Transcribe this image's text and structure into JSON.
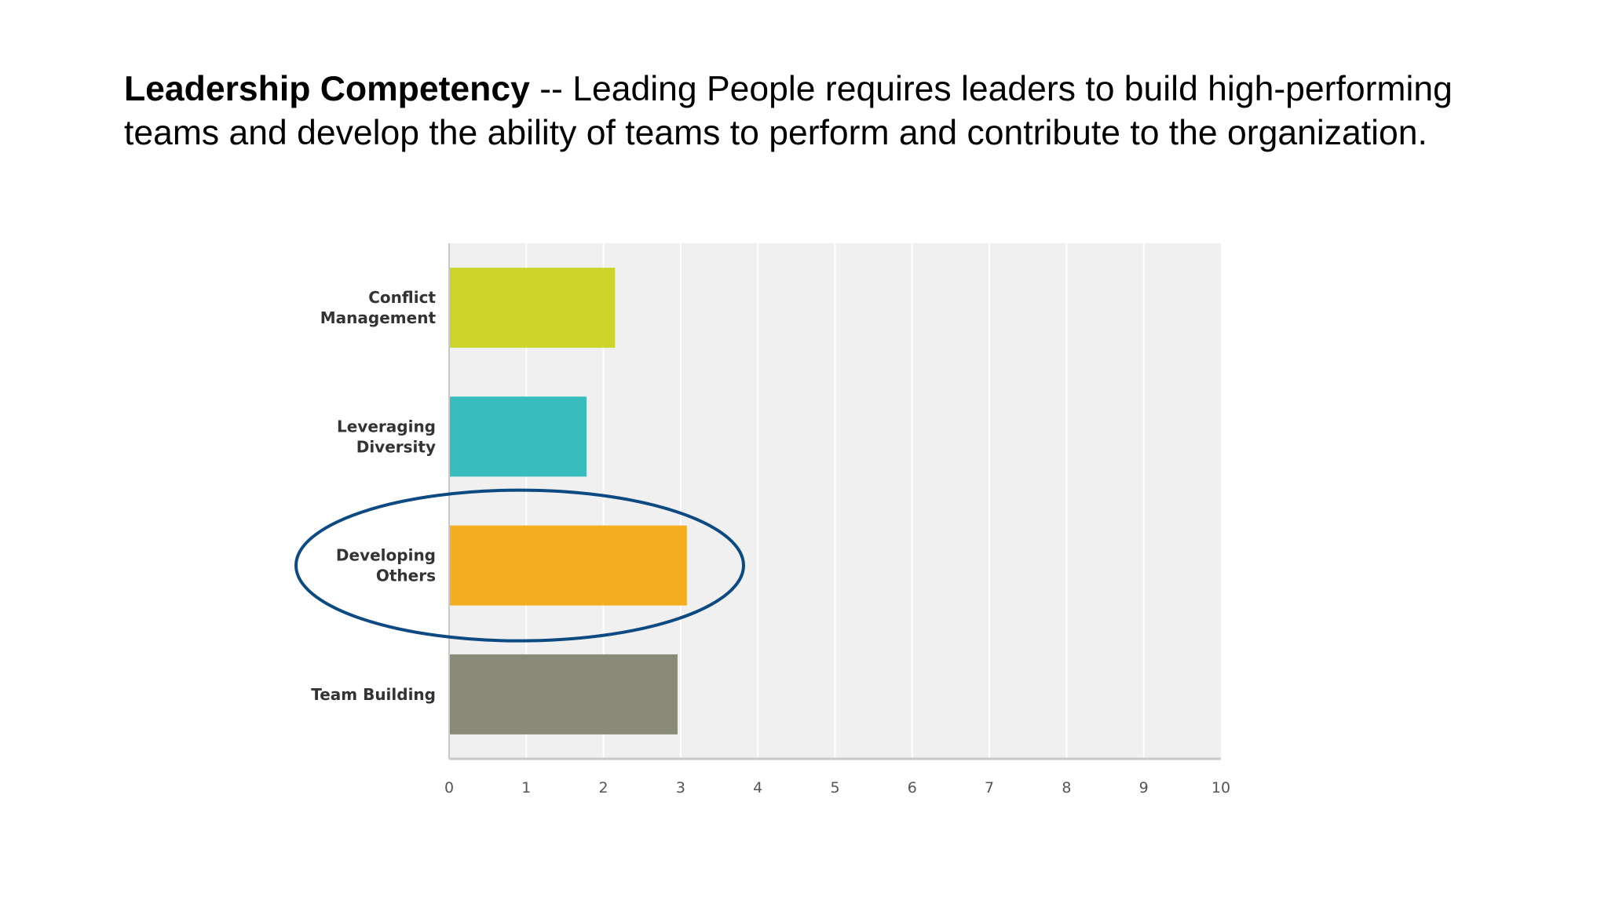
{
  "heading": {
    "bold": "Leadership Competency",
    "rest": " -- Leading People requires leaders to build high-performing teams and develop the ability of teams to perform and contribute to the organization."
  },
  "chart_data": {
    "type": "bar",
    "orientation": "horizontal",
    "categories": [
      [
        "Conflict",
        "Management"
      ],
      [
        "Leveraging",
        "Diversity"
      ],
      [
        "Developing",
        "Others"
      ],
      [
        "Team Building"
      ]
    ],
    "values": [
      2.15,
      1.78,
      3.08,
      2.96
    ],
    "colors": [
      "#cdd52b",
      "#37bdbc",
      "#f4ae1f",
      "#898b78"
    ],
    "xlim": [
      0,
      10
    ],
    "xticks": [
      0,
      1,
      2,
      3,
      4,
      5,
      6,
      7,
      8,
      9,
      10
    ],
    "grid": true,
    "highlight": {
      "category_index": 2,
      "shape": "ellipse",
      "color": "#0d4a82"
    },
    "title": "",
    "xlabel": "",
    "ylabel": ""
  }
}
